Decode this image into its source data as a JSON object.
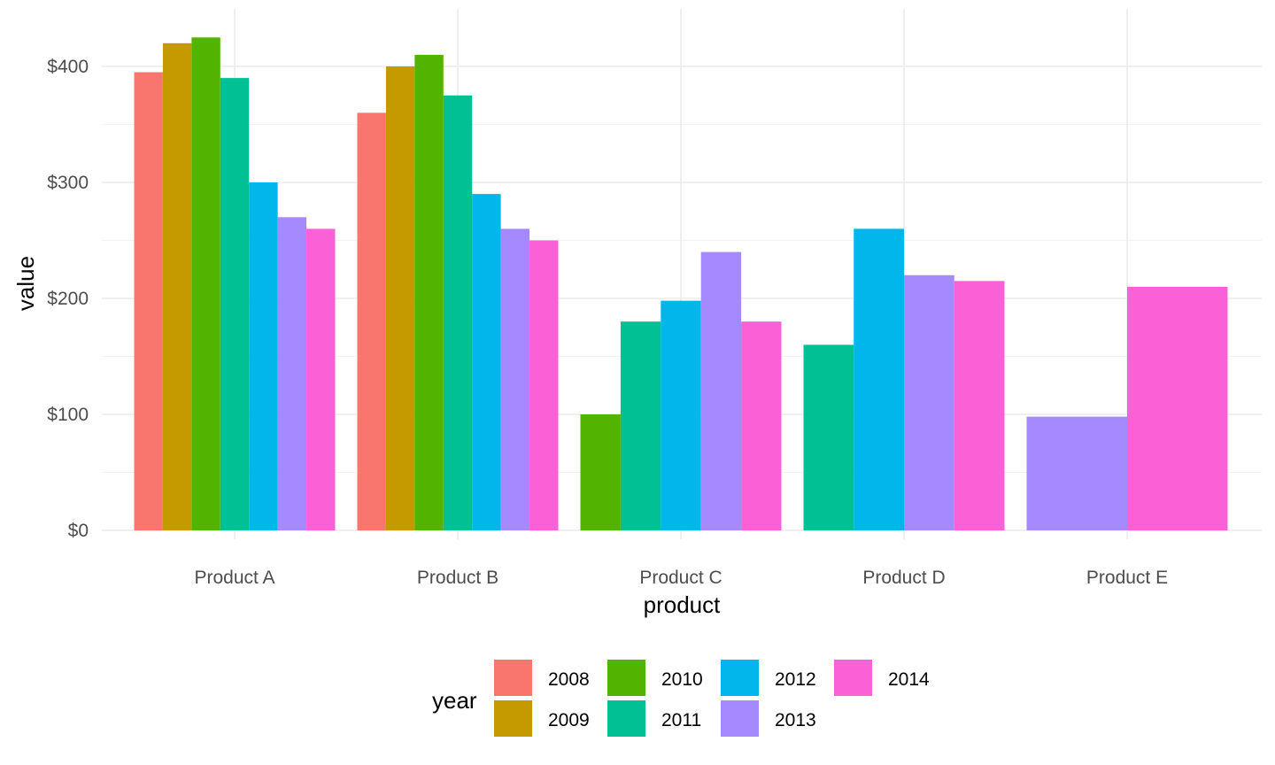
{
  "chart_data": {
    "type": "bar",
    "xlabel": "product",
    "ylabel": "value",
    "categories": [
      "Product A",
      "Product B",
      "Product C",
      "Product D",
      "Product E"
    ],
    "ylim": [
      0,
      440
    ],
    "y_ticks": [
      0,
      100,
      200,
      300,
      400
    ],
    "y_tick_labels": [
      "$0",
      "$100",
      "$200",
      "$300",
      "$400"
    ],
    "grid": true,
    "legend": {
      "title": "year",
      "position": "bottom"
    },
    "series": [
      {
        "name": "2008",
        "color": "#F8766D",
        "values": [
          395,
          360,
          null,
          null,
          null
        ]
      },
      {
        "name": "2009",
        "color": "#C49A00",
        "values": [
          420,
          400,
          null,
          null,
          null
        ]
      },
      {
        "name": "2010",
        "color": "#53B400",
        "values": [
          425,
          410,
          100,
          null,
          null
        ]
      },
      {
        "name": "2011",
        "color": "#00C094",
        "values": [
          390,
          375,
          180,
          160,
          null
        ]
      },
      {
        "name": "2012",
        "color": "#00B6EB",
        "values": [
          300,
          290,
          198,
          260,
          null
        ]
      },
      {
        "name": "2013",
        "color": "#A58AFF",
        "values": [
          270,
          260,
          240,
          220,
          98
        ]
      },
      {
        "name": "2014",
        "color": "#FB61D7",
        "values": [
          260,
          250,
          180,
          215,
          210
        ]
      }
    ]
  }
}
